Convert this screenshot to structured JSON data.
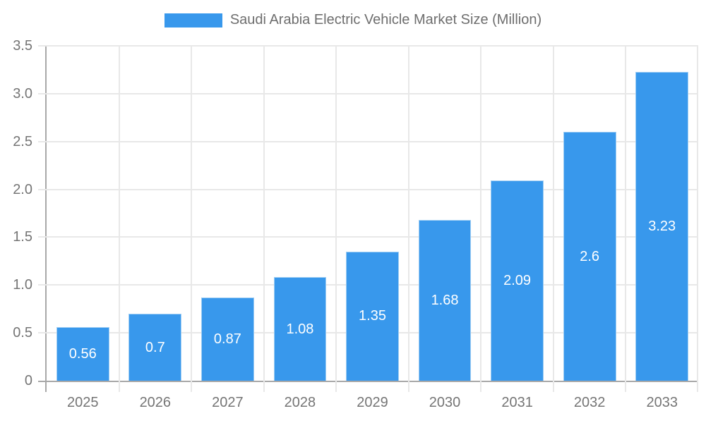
{
  "chart_data": {
    "type": "bar",
    "title": "Saudi Arabia Electric Vehicle Market Size (Million)",
    "categories": [
      "2025",
      "2026",
      "2027",
      "2028",
      "2029",
      "2030",
      "2031",
      "2032",
      "2033"
    ],
    "values": [
      0.56,
      0.7,
      0.87,
      1.08,
      1.35,
      1.68,
      2.09,
      2.6,
      3.23
    ],
    "value_labels": [
      "0.56",
      "0.7",
      "0.87",
      "1.08",
      "1.35",
      "1.68",
      "2.09",
      "2.6",
      "3.23"
    ],
    "xlabel": "",
    "ylabel": "",
    "ylim": [
      0,
      3.5
    ],
    "yticks": [
      0,
      0.5,
      1,
      1.5,
      2,
      2.5,
      3,
      3.5
    ],
    "ytick_labels": [
      "0",
      "0.5",
      "1.0",
      "1.5",
      "2.0",
      "2.5",
      "3.0",
      "3.5"
    ],
    "grid": true,
    "legend_position": "top-center",
    "colors": {
      "bar_fill": "#3898ec",
      "bar_border": "#9ecdf3",
      "bar_label_text": "#ffffff",
      "grid_line": "#e8e8e8",
      "axis_line": "#a8a8a8",
      "tick_text": "#757575",
      "title_text": "#6e6e6e",
      "background": "#ffffff"
    }
  }
}
